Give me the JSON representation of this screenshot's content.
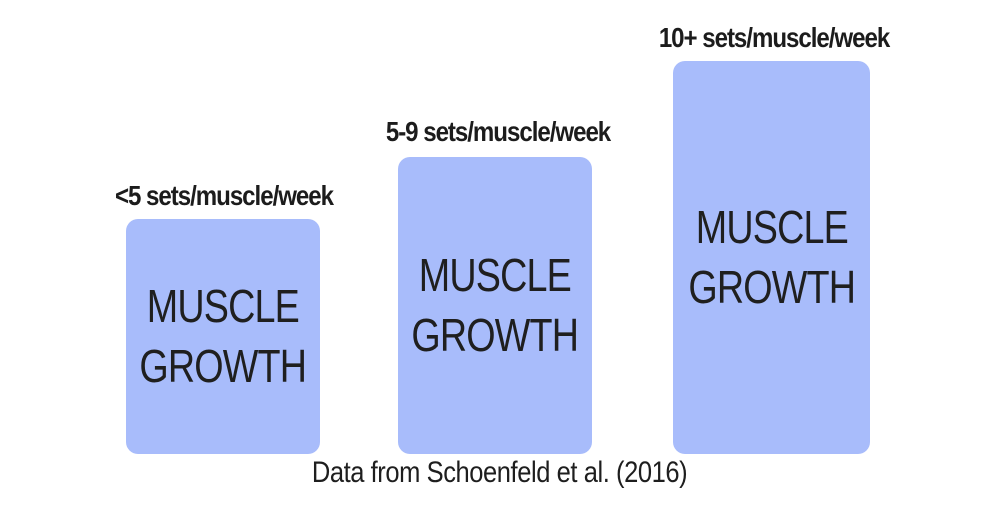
{
  "tiers": [
    {
      "label": "<5 sets/muscle/week",
      "text_line1": "MUSCLE",
      "text_line2": "GROWTH"
    },
    {
      "label": "5-9 sets/muscle/week",
      "text_line1": "MUSCLE",
      "text_line2": "GROWTH"
    },
    {
      "label": "10+ sets/muscle/week",
      "text_line1": "MUSCLE",
      "text_line2": "GROWTH"
    }
  ],
  "caption": "Data from Schoenfeld et al. (2016)",
  "colors": {
    "box_fill": "#a8bcfb",
    "text": "#1f1f1f",
    "background": "#ffffff"
  }
}
